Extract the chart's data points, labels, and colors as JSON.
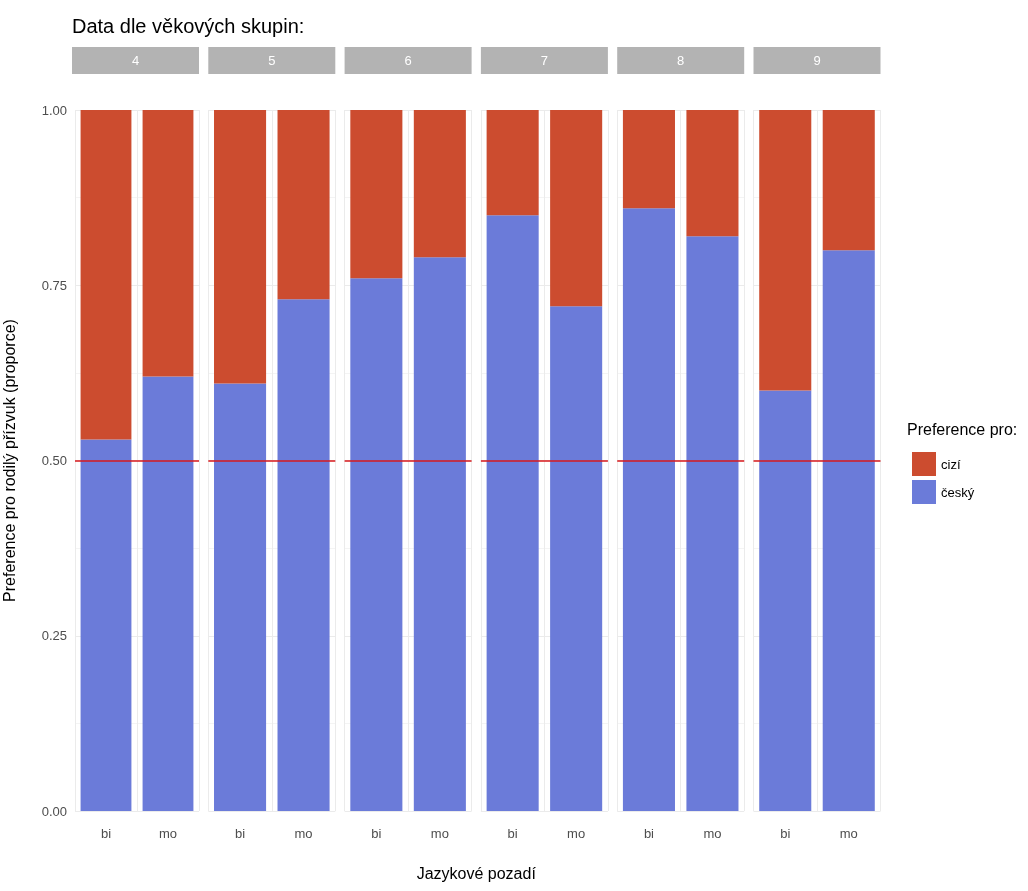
{
  "chart_data": [
    {
      "type": "bar",
      "title": "Data dle věkových skupin:",
      "subtitle": "4",
      "ylabel": "Preference pro rodilý přízvuk (proporce)",
      "categories": [
        "bi",
        "mo"
      ],
      "stacked": true,
      "series": [
        {
          "color": "#6b7bd9",
          "values": [
            0.53,
            0.62
          ]
        },
        {
          "color": "#cc4c2f",
          "values": [
            0.47,
            0.38
          ]
        }
      ],
      "ylim": [
        0,
        1
      ],
      "yticks": [
        {
          "value": 0,
          "label": "0.00"
        },
        {
          "value": 0.25,
          "label": "0.25"
        },
        {
          "value": 0.5,
          "label": "0.50"
        },
        {
          "value": 0.75,
          "label": "0.75"
        },
        {
          "value": 1,
          "label": "1.00"
        }
      ],
      "ref_lines": [
        {
          "axis": "y",
          "value": 0.5,
          "color": "#d7191c"
        }
      ],
      "grid": true
    },
    {
      "type": "bar",
      "subtitle": "5",
      "categories": [
        "bi",
        "mo"
      ],
      "stacked": true,
      "series": [
        {
          "color": "#6b7bd9",
          "values": [
            0.61,
            0.73
          ]
        },
        {
          "color": "#cc4c2f",
          "values": [
            0.39,
            0.27
          ]
        }
      ],
      "ylim": [
        0,
        1
      ],
      "yticks": [
        {
          "value": 0,
          "label": null
        },
        {
          "value": 0.25,
          "label": null
        },
        {
          "value": 0.5,
          "label": null
        },
        {
          "value": 0.75,
          "label": null
        },
        {
          "value": 1,
          "label": null
        }
      ],
      "ref_lines": [
        {
          "axis": "y",
          "value": 0.5,
          "color": "#d7191c"
        }
      ],
      "grid": true,
      "tick_labels": "x"
    },
    {
      "type": "bar",
      "subtitle": "6",
      "categories": [
        "bi",
        "mo"
      ],
      "stacked": true,
      "series": [
        {
          "color": "#6b7bd9",
          "values": [
            0.76,
            0.79
          ]
        },
        {
          "color": "#cc4c2f",
          "values": [
            0.24,
            0.21
          ]
        }
      ],
      "ylim": [
        0,
        1
      ],
      "yticks": [
        {
          "value": 0,
          "label": null
        },
        {
          "value": 0.25,
          "label": null
        },
        {
          "value": 0.5,
          "label": null
        },
        {
          "value": 0.75,
          "label": null
        },
        {
          "value": 1,
          "label": null
        }
      ],
      "ref_lines": [
        {
          "axis": "y",
          "value": 0.5,
          "color": "#d7191c"
        }
      ],
      "grid": true,
      "tick_labels": "x"
    },
    {
      "type": "bar",
      "subtitle": "7",
      "xlabel": "Jazykové pozadí",
      "categories": [
        "bi",
        "mo"
      ],
      "stacked": true,
      "series": [
        {
          "color": "#6b7bd9",
          "values": [
            0.85,
            0.72
          ]
        },
        {
          "color": "#cc4c2f",
          "values": [
            0.15,
            0.28
          ]
        }
      ],
      "ylim": [
        0,
        1
      ],
      "yticks": [
        {
          "value": 0,
          "label": null
        },
        {
          "value": 0.25,
          "label": null
        },
        {
          "value": 0.5,
          "label": null
        },
        {
          "value": 0.75,
          "label": null
        },
        {
          "value": 1,
          "label": null
        }
      ],
      "ref_lines": [
        {
          "axis": "y",
          "value": 0.5,
          "color": "#d7191c"
        }
      ],
      "grid": true,
      "tick_labels": "x"
    },
    {
      "type": "bar",
      "subtitle": "8",
      "categories": [
        "bi",
        "mo"
      ],
      "stacked": true,
      "series": [
        {
          "color": "#6b7bd9",
          "values": [
            0.86,
            0.82
          ]
        },
        {
          "color": "#cc4c2f",
          "values": [
            0.14,
            0.18
          ]
        }
      ],
      "ylim": [
        0,
        1
      ],
      "yticks": [
        {
          "value": 0,
          "label": null
        },
        {
          "value": 0.25,
          "label": null
        },
        {
          "value": 0.5,
          "label": null
        },
        {
          "value": 0.75,
          "label": null
        },
        {
          "value": 1,
          "label": null
        }
      ],
      "ref_lines": [
        {
          "axis": "y",
          "value": 0.5,
          "color": "#d7191c"
        }
      ],
      "grid": true,
      "tick_labels": "x"
    },
    {
      "type": "bar",
      "subtitle": "9",
      "legend_title": "Preference pro:",
      "legend": "right",
      "categories": [
        "bi",
        "mo"
      ],
      "stacked": true,
      "series": [
        {
          "name": "český",
          "color": "#6b7bd9",
          "values": [
            0.6,
            0.8
          ]
        },
        {
          "name": "cizí",
          "color": "#cc4c2f",
          "values": [
            0.4,
            0.2
          ]
        }
      ],
      "ylim": [
        0,
        1
      ],
      "yticks": [
        {
          "value": 0,
          "label": null
        },
        {
          "value": 0.25,
          "label": null
        },
        {
          "value": 0.5,
          "label": null
        },
        {
          "value": 0.75,
          "label": null
        },
        {
          "value": 1,
          "label": null
        }
      ],
      "ref_lines": [
        {
          "axis": "y",
          "value": 0.5,
          "color": "#d7191c"
        }
      ],
      "grid": true,
      "tick_labels": "x"
    }
  ]
}
